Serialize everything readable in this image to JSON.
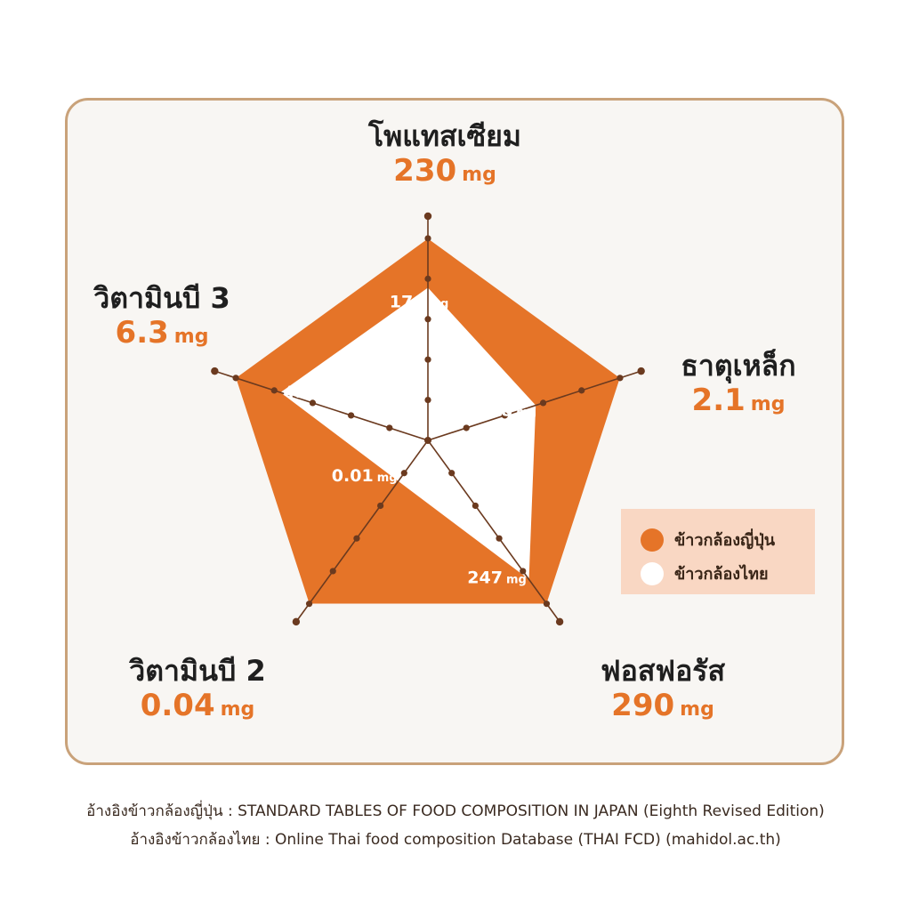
{
  "chart_data": {
    "type": "radar",
    "axes": [
      {
        "name": "โพแทสเซียม",
        "unit": "mg",
        "japan": 230,
        "thai": 174,
        "japan_label": "230",
        "thai_label": "174"
      },
      {
        "name": "ธาตุเหล็ก",
        "unit": "mg",
        "japan": 2.1,
        "thai": 1.18,
        "japan_label": "2.1",
        "thai_label": "1.18"
      },
      {
        "name": "ฟอสฟอรัส",
        "unit": "mg",
        "japan": 290,
        "thai": 247,
        "japan_label": "290",
        "thai_label": "247"
      },
      {
        "name": "วิตามินบี 2",
        "unit": "mg",
        "japan": 0.04,
        "thai": 0.01,
        "japan_label": "0.04",
        "thai_label": "0.01"
      },
      {
        "name": "วิตามินบี 3",
        "unit": "mg",
        "japan": 6.3,
        "thai": 4.84,
        "japan_label": "6.3",
        "thai_label": "4.84"
      }
    ],
    "series": [
      {
        "name": "ข้าวกล้องญี่ปุ่น",
        "color": "#e57428"
      },
      {
        "name": "ข้าวกล้องไทย",
        "color": "#ffffff"
      }
    ],
    "legend_position": "right"
  },
  "footer": {
    "line1": "อ้างอิงข้าวกล้องญี่ปุ่น : STANDARD TABLES OF FOOD COMPOSITION IN JAPAN (Eighth Revised Edition)",
    "line2": "อ้างอิงข้าวกล้องไทย : Online Thai food composition Database (THAI FCD) (mahidol.ac.th)"
  },
  "colors": {
    "accent": "#e57428",
    "axis": "#6b3a1f",
    "border": "#c9a27a",
    "legend_bg": "#f9d7c3"
  }
}
